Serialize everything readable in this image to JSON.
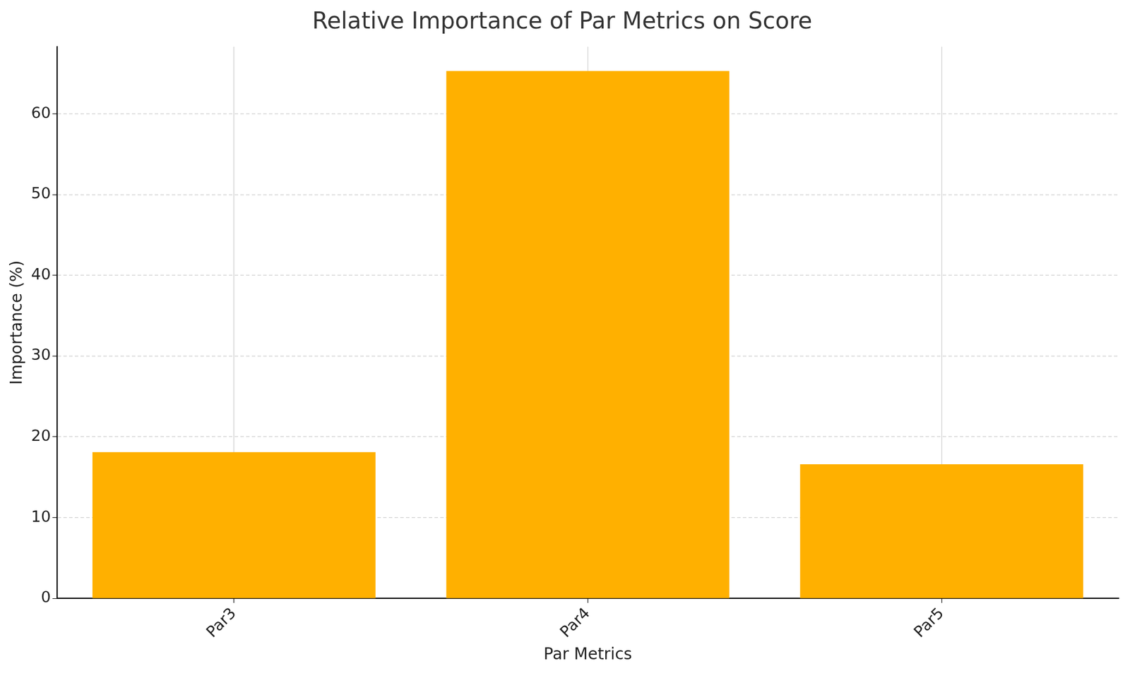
{
  "chart_data": {
    "type": "bar",
    "title": "Relative Importance of Par Metrics on Score",
    "x_label": "Par Metrics",
    "y_label": "Importance (%)",
    "categories": [
      "Par3",
      "Par4",
      "Par5"
    ],
    "values": [
      18.1,
      65.3,
      16.6
    ],
    "color": "#ffb000",
    "ylim": [
      0,
      68.3
    ],
    "yticks": [
      0,
      10,
      20,
      30,
      40,
      50,
      60
    ],
    "grid": true
  }
}
